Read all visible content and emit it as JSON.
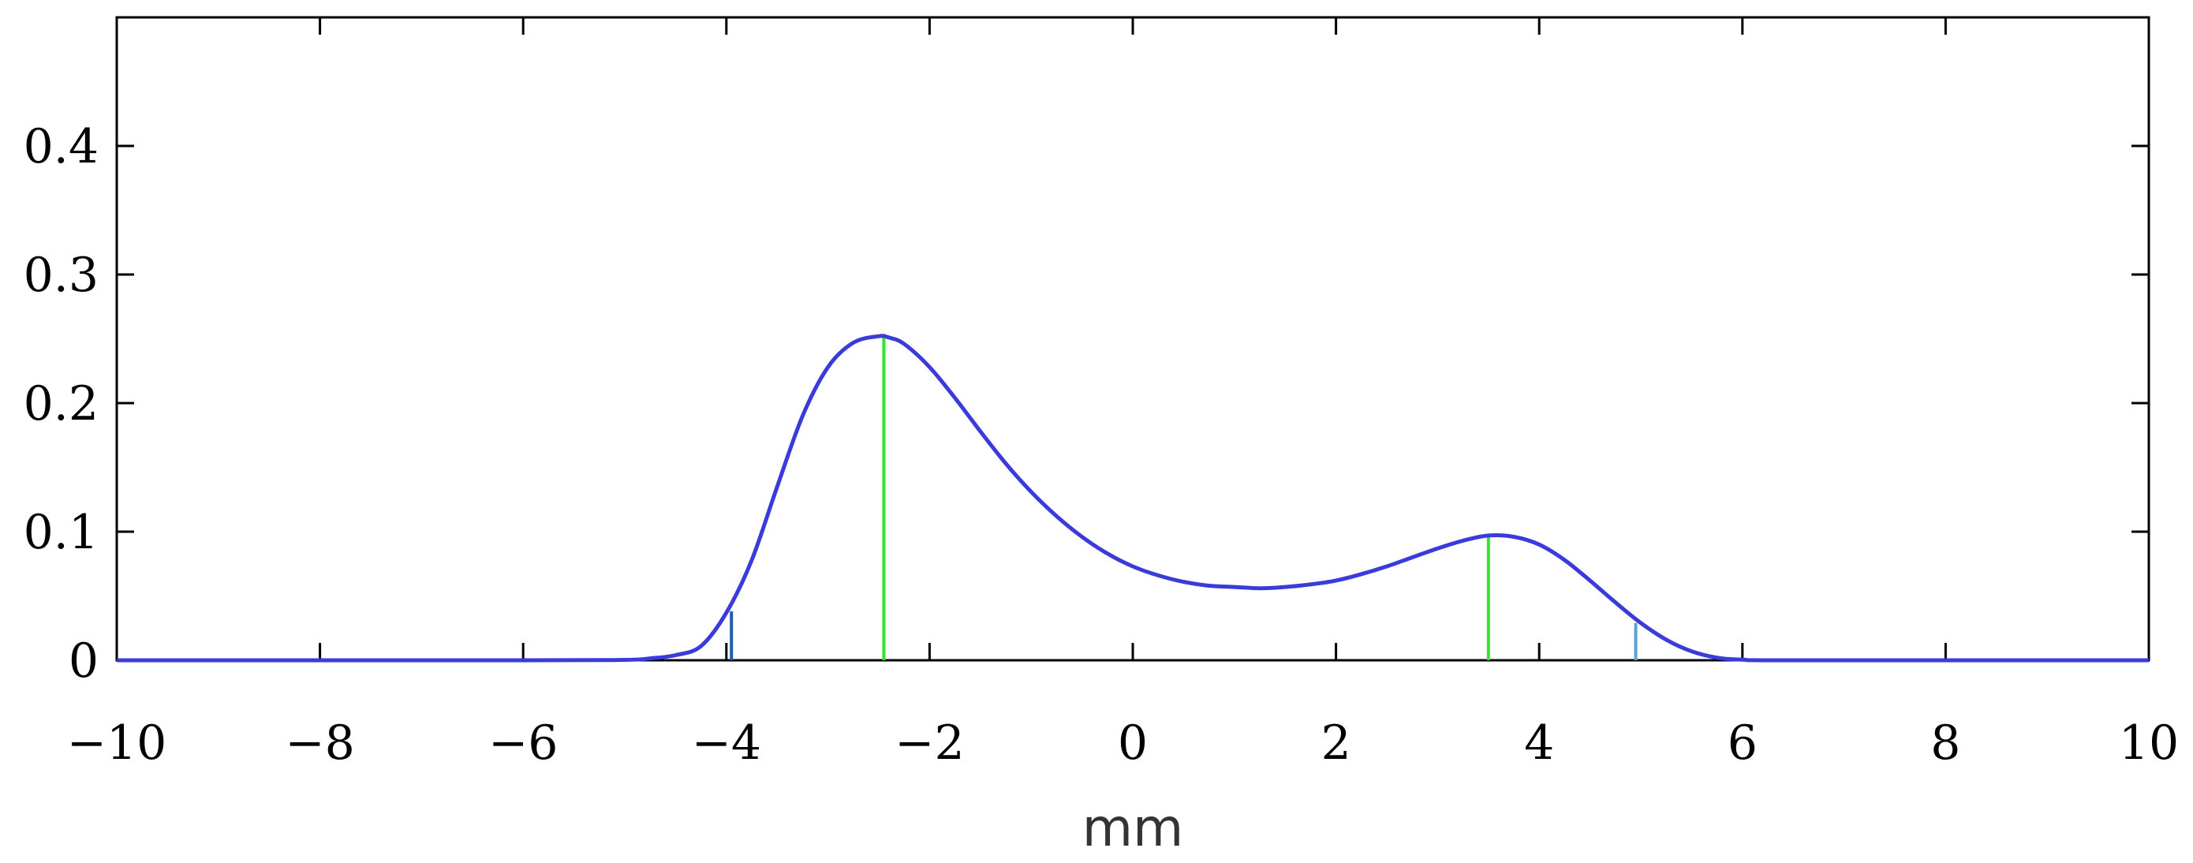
{
  "chart_data": {
    "type": "line",
    "title": "",
    "xlabel": "mm",
    "ylabel": "",
    "xlim": [
      -10,
      10
    ],
    "ylim": [
      0,
      0.5
    ],
    "x_ticks": [
      -10,
      -8,
      -6,
      -4,
      -2,
      0,
      2,
      4,
      6,
      8,
      10
    ],
    "x_tick_labels": [
      "−10",
      "−8",
      "−6",
      "−4",
      "−2",
      "0",
      "2",
      "4",
      "6",
      "8",
      "10"
    ],
    "y_ticks": [
      0,
      0.1,
      0.2,
      0.3,
      0.4
    ],
    "y_tick_labels": [
      "0",
      "0.1",
      "0.2",
      "0.3",
      "0.4"
    ],
    "grid": false,
    "legend": "none",
    "series": [
      {
        "color": "#3b3bdc",
        "x": [
          -10,
          -6,
          -5,
          -4.75,
          -4.5,
          -4.25,
          -4,
          -3.75,
          -3.5,
          -3.25,
          -3,
          -2.75,
          -2.5,
          -2.4,
          -2.25,
          -2,
          -1.75,
          -1.5,
          -1.25,
          -1,
          -0.75,
          -0.5,
          -0.25,
          0,
          0.25,
          0.5,
          0.75,
          1,
          1.25,
          1.5,
          1.75,
          2,
          2.25,
          2.5,
          2.75,
          3,
          3.25,
          3.5,
          3.75,
          4,
          4.25,
          4.5,
          4.75,
          5,
          5.25,
          5.5,
          5.75,
          6,
          6.5,
          10
        ],
        "y": [
          0,
          0,
          0.0003,
          0.0015,
          0.004,
          0.011,
          0.037,
          0.078,
          0.135,
          0.19,
          0.228,
          0.247,
          0.252,
          0.251,
          0.246,
          0.228,
          0.204,
          0.178,
          0.153,
          0.131,
          0.112,
          0.096,
          0.083,
          0.073,
          0.066,
          0.061,
          0.058,
          0.057,
          0.056,
          0.057,
          0.059,
          0.062,
          0.067,
          0.073,
          0.08,
          0.087,
          0.093,
          0.097,
          0.096,
          0.09,
          0.078,
          0.062,
          0.045,
          0.029,
          0.016,
          0.007,
          0.002,
          0.0005,
          0,
          0
        ]
      }
    ],
    "markers": [
      {
        "x": -3.95,
        "y": 0.038,
        "color": "#1f5fa8"
      },
      {
        "x": -2.45,
        "y": 0.251,
        "color": "#2ee62e"
      },
      {
        "x": 3.5,
        "y": 0.097,
        "color": "#2ee62e"
      },
      {
        "x": 4.95,
        "y": 0.029,
        "color": "#5aa0d8"
      }
    ]
  }
}
